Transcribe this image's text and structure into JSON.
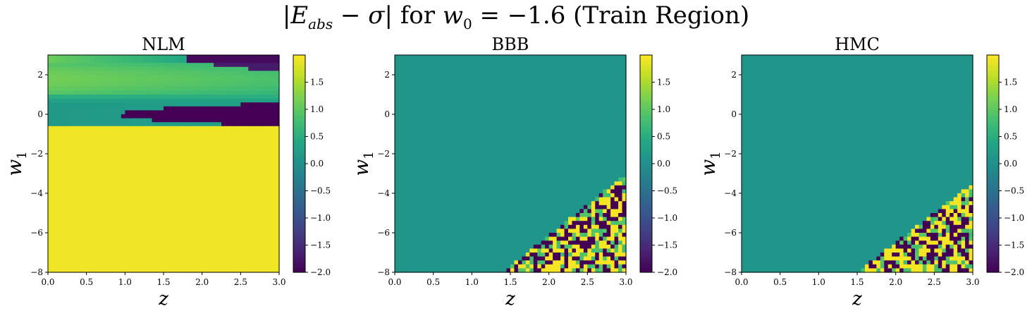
{
  "figure": {
    "title_prefix": "|",
    "title_E": "E",
    "title_E_sub": "abs",
    "title_mid": " − ",
    "title_sigma": "σ",
    "title_for": "| for ",
    "title_w": "w",
    "title_w_sub": "0",
    "title_eq": " = −1.6 (Train Region)"
  },
  "chart_data": [
    {
      "type": "heatmap",
      "title": "NLM",
      "xlabel": "z",
      "ylabel": "w1",
      "xlim": [
        0.0,
        3.0
      ],
      "ylim": [
        -8,
        3
      ],
      "xticks": [
        "0.0",
        "0.5",
        "1.0",
        "1.5",
        "2.0",
        "2.5",
        "3.0"
      ],
      "yticks": [
        "2",
        "0",
        "−2",
        "−4",
        "−6",
        "−8"
      ],
      "colorbar": {
        "range": [
          -2.0,
          2.0
        ],
        "ticks": [
          "1.5",
          "1.0",
          "0.5",
          "0.0",
          "−0.5",
          "−1.0",
          "−1.5",
          "−2.0"
        ],
        "colormap": "viridis"
      },
      "pattern": "smooth: yellow below w1≈-0.5 (≈1.9), dark band near w1≈0 for z>1 (≈-2.0), green/teal band near w1 1-2.5 (≈0.5-1.2), dark wedge top-right"
    },
    {
      "type": "heatmap",
      "title": "BBB",
      "xlabel": "z",
      "ylabel": "w1",
      "xlim": [
        0.0,
        3.0
      ],
      "ylim": [
        -8,
        3
      ],
      "xticks": [
        "0.0",
        "0.5",
        "1.0",
        "1.5",
        "2.0",
        "2.5",
        "3.0"
      ],
      "yticks": [
        "2",
        "0",
        "−2",
        "−4",
        "−6",
        "−8"
      ],
      "colorbar": {
        "range": [
          -2.0,
          2.0
        ],
        "ticks": [
          "1.5",
          "1.0",
          "0.5",
          "0.0",
          "−0.5",
          "−1.0",
          "−1.5",
          "−2.0"
        ],
        "colormap": "viridis"
      },
      "pattern": "mostly ≈0.1 teal; noisy ±2 speckle in lower-right region (z>1.5, w1<-3)"
    },
    {
      "type": "heatmap",
      "title": "HMC",
      "xlabel": "z",
      "ylabel": "w1",
      "xlim": [
        0.0,
        3.0
      ],
      "ylim": [
        -8,
        3
      ],
      "xticks": [
        "0.0",
        "0.5",
        "1.0",
        "1.5",
        "2.0",
        "2.5",
        "3.0"
      ],
      "yticks": [
        "2",
        "0",
        "−2",
        "−4",
        "−6",
        "−8"
      ],
      "colorbar": {
        "range": [
          -2.0,
          2.0
        ],
        "ticks": [
          "1.5",
          "1.0",
          "0.5",
          "0.0",
          "−0.5",
          "−1.0",
          "−1.5",
          "−2.0"
        ],
        "colormap": "viridis"
      },
      "pattern": "mostly ≈0 teal; noisy ±2 speckle in lower-right region (z>1.5, w1<-3.5)"
    }
  ]
}
